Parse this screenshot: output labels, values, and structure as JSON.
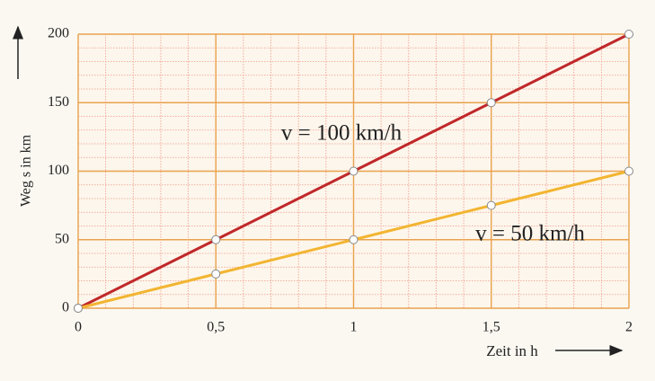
{
  "chart_data": {
    "type": "line",
    "x_label": "Zeit in h",
    "y_label": "Weg s in km",
    "x": [
      0,
      0.5,
      1,
      1.5,
      2
    ],
    "series": [
      {
        "name": "v = 100 km/h",
        "color": "#c0282a",
        "values": [
          0,
          50,
          100,
          150,
          200
        ]
      },
      {
        "name": "v = 50 km/h",
        "color": "#f2b531",
        "values": [
          0,
          25,
          50,
          75,
          100
        ]
      }
    ],
    "xlim": [
      0,
      2
    ],
    "xticks": [
      0,
      {
        "value": 0.5,
        "label": "0,5"
      },
      1,
      {
        "value": 1.5,
        "label": "1,5"
      },
      2
    ],
    "ylim": [
      0,
      200
    ],
    "yticks": [
      0,
      50,
      100,
      150,
      200
    ],
    "grid": true
  }
}
